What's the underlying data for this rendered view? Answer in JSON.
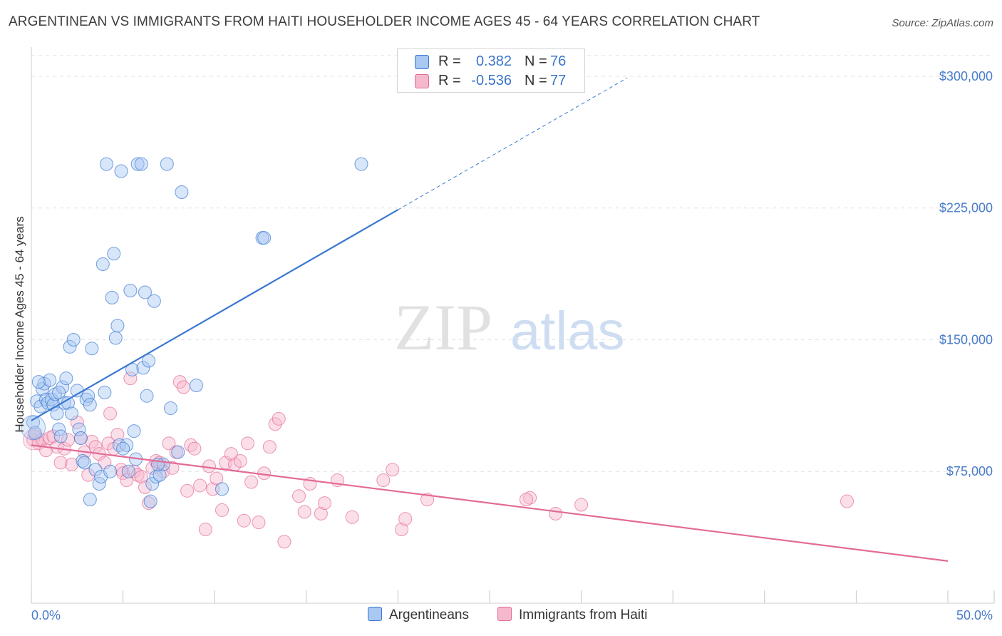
{
  "title": "ARGENTINEAN VS IMMIGRANTS FROM HAITI HOUSEHOLDER INCOME AGES 45 - 64 YEARS CORRELATION CHART",
  "source": "Source: ZipAtlas.com",
  "watermark": {
    "zip": "ZIP",
    "atlas": "atlas"
  },
  "colors": {
    "blue": "#3a78d2",
    "blue_fill": "#a9c8f2",
    "pink": "#e36a97",
    "pink_fill": "#f6b8cd",
    "tick_text": "#4a7cc9",
    "grid": "#e2e2e2"
  },
  "legend_top": {
    "rows": [
      {
        "r_label": "R =",
        "r_value": "0.382",
        "n_label": "N =",
        "n_value": "76"
      },
      {
        "r_label": "R =",
        "r_value": "-0.536",
        "n_label": "N =",
        "n_value": "77"
      }
    ]
  },
  "legend_bottom": {
    "items": [
      "Argentineans",
      "Immigrants from Haiti"
    ]
  },
  "chart_data": {
    "type": "scatter",
    "title": "ARGENTINEAN VS IMMIGRANTS FROM HAITI HOUSEHOLDER INCOME AGES 45 - 64 YEARS CORRELATION CHART",
    "xlabel": "",
    "ylabel": "Householder Income Ages 45 - 64 years",
    "xlim": [
      0,
      50
    ],
    "ylim": [
      0,
      315000
    ],
    "x_tick_labels": [
      "0.0%",
      "50.0%"
    ],
    "y_ticks": [
      75000,
      150000,
      225000,
      300000
    ],
    "y_tick_labels": [
      "$75,000",
      "$150,000",
      "$225,000",
      "$300,000"
    ],
    "grid": true,
    "legend": "bottom",
    "series": [
      {
        "name": "Argentineans",
        "color": "#3a78d2",
        "r": 0.382,
        "n": 76,
        "trend": {
          "x0": 0,
          "y0": 104000,
          "x1": 20,
          "y1": 224000,
          "dashed_to_x": 32.5,
          "dashed_to_y": 299000
        },
        "points": [
          [
            0.1,
            103000
          ],
          [
            0.2,
            97000
          ],
          [
            0.3,
            115000
          ],
          [
            0.5,
            112000
          ],
          [
            0.6,
            122000
          ],
          [
            0.7,
            125000
          ],
          [
            0.8,
            116000
          ],
          [
            0.9,
            114000
          ],
          [
            1.0,
            127000
          ],
          [
            1.1,
            116000
          ],
          [
            1.2,
            113000
          ],
          [
            1.3,
            119000
          ],
          [
            1.4,
            108000
          ],
          [
            1.5,
            99000
          ],
          [
            1.6,
            95000
          ],
          [
            1.7,
            123000
          ],
          [
            1.8,
            114000
          ],
          [
            1.9,
            128000
          ],
          [
            2.0,
            114000
          ],
          [
            2.1,
            146000
          ],
          [
            2.3,
            150000
          ],
          [
            2.5,
            121000
          ],
          [
            2.6,
            99000
          ],
          [
            2.7,
            94000
          ],
          [
            2.8,
            81000
          ],
          [
            2.9,
            80000
          ],
          [
            3.0,
            116000
          ],
          [
            3.1,
            118000
          ],
          [
            3.2,
            113000
          ],
          [
            3.3,
            145000
          ],
          [
            3.5,
            76000
          ],
          [
            3.7,
            68000
          ],
          [
            3.8,
            72000
          ],
          [
            3.9,
            193000
          ],
          [
            4.0,
            120000
          ],
          [
            4.1,
            250000
          ],
          [
            4.3,
            75000
          ],
          [
            4.4,
            174000
          ],
          [
            4.5,
            199000
          ],
          [
            4.6,
            151000
          ],
          [
            4.7,
            158000
          ],
          [
            4.8,
            90000
          ],
          [
            4.9,
            246000
          ],
          [
            5.2,
            90000
          ],
          [
            5.3,
            75000
          ],
          [
            5.4,
            178000
          ],
          [
            5.5,
            133000
          ],
          [
            5.6,
            98000
          ],
          [
            5.7,
            82000
          ],
          [
            5.8,
            250000
          ],
          [
            6.0,
            250000
          ],
          [
            6.1,
            134000
          ],
          [
            6.2,
            177000
          ],
          [
            6.3,
            118000
          ],
          [
            6.4,
            138000
          ],
          [
            6.5,
            58000
          ],
          [
            6.6,
            68000
          ],
          [
            6.7,
            172000
          ],
          [
            6.8,
            72000
          ],
          [
            7.0,
            73000
          ],
          [
            7.2,
            79000
          ],
          [
            7.4,
            250000
          ],
          [
            7.6,
            111000
          ],
          [
            8.0,
            86000
          ],
          [
            8.2,
            234000
          ],
          [
            9.0,
            124000
          ],
          [
            10.4,
            65000
          ],
          [
            12.6,
            208000
          ],
          [
            12.7,
            208000
          ],
          [
            18.0,
            250000
          ],
          [
            0.4,
            126000
          ],
          [
            1.5,
            120000
          ],
          [
            2.2,
            108000
          ],
          [
            3.2,
            59000
          ],
          [
            5.0,
            88000
          ],
          [
            6.9,
            79000
          ]
        ]
      },
      {
        "name": "Immigrants from Haiti",
        "color": "#e36a97",
        "r": -0.536,
        "n": 77,
        "trend": {
          "x0": 0,
          "y0": 90000,
          "x1": 50,
          "y1": 24000
        },
        "points": [
          [
            0.1,
            93000
          ],
          [
            0.2,
            96000
          ],
          [
            0.4,
            91000
          ],
          [
            0.6,
            93000
          ],
          [
            0.8,
            87000
          ],
          [
            1.0,
            94000
          ],
          [
            1.2,
            95000
          ],
          [
            1.4,
            89000
          ],
          [
            1.6,
            80000
          ],
          [
            1.8,
            88000
          ],
          [
            2.0,
            93000
          ],
          [
            2.2,
            79000
          ],
          [
            2.5,
            103000
          ],
          [
            2.7,
            94000
          ],
          [
            2.9,
            86000
          ],
          [
            3.1,
            73000
          ],
          [
            3.3,
            92000
          ],
          [
            3.5,
            89000
          ],
          [
            3.7,
            85000
          ],
          [
            4.0,
            80000
          ],
          [
            4.2,
            91000
          ],
          [
            4.3,
            108000
          ],
          [
            4.5,
            88000
          ],
          [
            4.7,
            96000
          ],
          [
            4.9,
            76000
          ],
          [
            5.0,
            74000
          ],
          [
            5.2,
            70000
          ],
          [
            5.4,
            128000
          ],
          [
            5.6,
            75000
          ],
          [
            5.8,
            73000
          ],
          [
            6.0,
            72000
          ],
          [
            6.2,
            66000
          ],
          [
            6.4,
            57000
          ],
          [
            6.6,
            77000
          ],
          [
            6.8,
            81000
          ],
          [
            7.0,
            80000
          ],
          [
            7.2,
            75000
          ],
          [
            7.5,
            91000
          ],
          [
            7.7,
            77000
          ],
          [
            7.9,
            86000
          ],
          [
            8.1,
            126000
          ],
          [
            8.3,
            123000
          ],
          [
            8.5,
            64000
          ],
          [
            8.7,
            90000
          ],
          [
            8.9,
            88000
          ],
          [
            9.2,
            67000
          ],
          [
            9.5,
            42000
          ],
          [
            9.7,
            78000
          ],
          [
            9.9,
            65000
          ],
          [
            10.1,
            71000
          ],
          [
            10.4,
            53000
          ],
          [
            10.6,
            80000
          ],
          [
            10.9,
            85000
          ],
          [
            11.1,
            79000
          ],
          [
            11.4,
            81000
          ],
          [
            11.6,
            47000
          ],
          [
            11.8,
            91000
          ],
          [
            12.0,
            69000
          ],
          [
            12.4,
            46000
          ],
          [
            12.7,
            74000
          ],
          [
            13.0,
            89000
          ],
          [
            13.3,
            102000
          ],
          [
            13.5,
            105000
          ],
          [
            13.8,
            35000
          ],
          [
            14.6,
            61000
          ],
          [
            14.9,
            52000
          ],
          [
            15.2,
            68000
          ],
          [
            15.8,
            51000
          ],
          [
            16.0,
            57000
          ],
          [
            16.7,
            70000
          ],
          [
            17.5,
            49000
          ],
          [
            19.2,
            70000
          ],
          [
            19.7,
            76000
          ],
          [
            20.2,
            42000
          ],
          [
            20.4,
            48000
          ],
          [
            21.6,
            59000
          ],
          [
            27.2,
            60000
          ]
        ]
      }
    ],
    "extra_pink_points": [
      [
        27.0,
        59000
      ],
      [
        28.6,
        51000
      ],
      [
        30.0,
        56000
      ],
      [
        44.5,
        58000
      ]
    ]
  }
}
